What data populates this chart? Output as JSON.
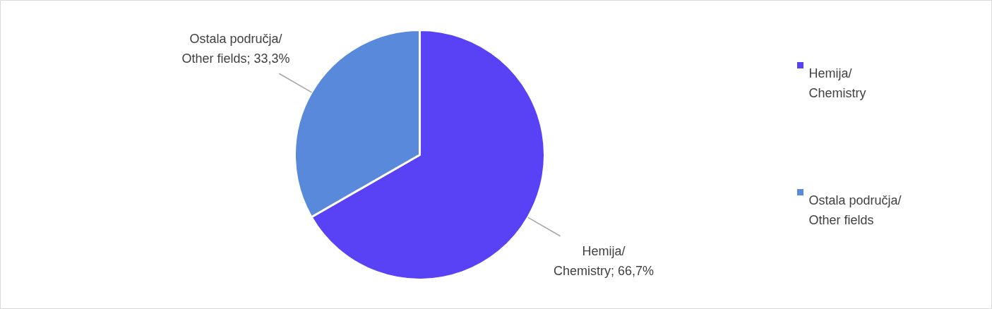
{
  "chart_data": {
    "type": "pie",
    "categories": [
      "Hemija/\nChemistry",
      "Ostala područja/\nOther fields"
    ],
    "values": [
      66.7,
      33.3
    ],
    "colors": [
      "#5941f5",
      "#5889db"
    ],
    "value_labels": [
      "Hemija/\nChemistry; 66,7%",
      "Ostala područja/\nOther fields; 33,3%"
    ],
    "legend": "right"
  }
}
